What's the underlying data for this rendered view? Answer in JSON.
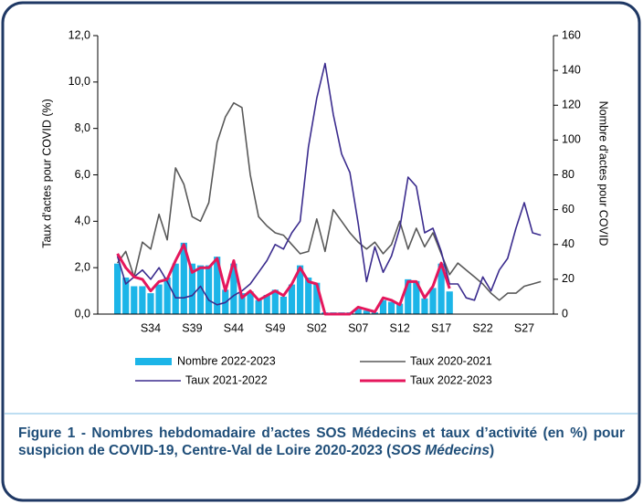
{
  "chart_data": {
    "type": "bar_line",
    "y_axis_label": "Taux d'actes pour COVID (%)",
    "y2_axis_label": "Nombre d'actes pour COVID",
    "categories": [
      null,
      null,
      null,
      null,
      "S34",
      null,
      null,
      null,
      null,
      "S39",
      null,
      null,
      null,
      null,
      "S44",
      null,
      null,
      null,
      null,
      "S49",
      null,
      null,
      null,
      null,
      "S02",
      null,
      null,
      null,
      null,
      "S07",
      null,
      null,
      null,
      null,
      "S12",
      null,
      null,
      null,
      null,
      "S17",
      null,
      null,
      null,
      null,
      "S22",
      null,
      null,
      null,
      null,
      "S27",
      null,
      null
    ],
    "ylim": [
      0,
      12
    ],
    "yticks": [
      {
        "value": 0,
        "label": "0,0"
      },
      {
        "value": 2,
        "label": "2,0"
      },
      {
        "value": 4,
        "label": "4,0"
      },
      {
        "value": 6,
        "label": "6,0"
      },
      {
        "value": 8,
        "label": "8,0"
      },
      {
        "value": 10,
        "label": "10,0"
      },
      {
        "value": 12,
        "label": "12,0"
      }
    ],
    "y2lim": [
      0,
      160
    ],
    "y2ticks": [
      0,
      20,
      40,
      60,
      80,
      100,
      120,
      140,
      160
    ],
    "series": [
      {
        "name": "Nombre 2022-2023",
        "kind": "bar",
        "axis": "y2",
        "color": "#1cb5e8",
        "values": [
          29,
          21,
          16,
          16,
          12,
          17,
          21,
          29,
          41,
          29,
          28,
          28,
          33,
          14,
          29,
          12,
          13,
          8,
          11,
          14,
          10,
          17,
          28,
          21,
          18,
          1,
          1,
          1,
          1,
          3,
          2,
          1,
          8,
          7,
          6,
          20,
          19,
          9,
          15,
          29,
          13,
          null,
          null,
          null,
          null,
          null,
          null,
          null,
          null,
          null,
          null,
          null
        ]
      },
      {
        "name": "Taux 2020-2021",
        "kind": "line",
        "color": "#595959",
        "values": [
          2.2,
          2.7,
          1.6,
          3.1,
          2.8,
          4.3,
          3.2,
          6.3,
          5.6,
          4.2,
          4.0,
          4.8,
          7.4,
          8.5,
          9.1,
          8.9,
          6.0,
          4.2,
          3.8,
          3.5,
          3.4,
          3.0,
          2.6,
          2.7,
          4.1,
          2.7,
          4.5,
          4.0,
          3.5,
          3.1,
          2.8,
          3.1,
          2.6,
          3.0,
          4.0,
          2.8,
          3.7,
          2.9,
          3.5,
          2.6,
          1.7,
          2.2,
          1.9,
          1.6,
          1.3,
          0.9,
          0.6,
          0.9,
          0.9,
          1.2,
          1.3,
          1.4
        ]
      },
      {
        "name": "Taux 2021-2022",
        "kind": "line",
        "color": "#3b2c8e",
        "values": [
          2.5,
          1.3,
          1.6,
          1.9,
          1.5,
          2.0,
          1.4,
          0.7,
          0.7,
          0.8,
          1.2,
          0.6,
          0.4,
          0.5,
          0.8,
          1.0,
          1.3,
          1.8,
          2.3,
          3.0,
          2.8,
          3.5,
          4.0,
          7.2,
          9.3,
          10.8,
          8.6,
          6.9,
          6.1,
          3.9,
          1.4,
          2.9,
          1.8,
          2.5,
          3.7,
          5.9,
          5.5,
          3.5,
          3.7,
          2.7,
          1.3,
          1.3,
          0.7,
          0.6,
          1.6,
          1.0,
          1.9,
          2.4,
          3.7,
          4.8,
          3.5,
          3.4
        ]
      },
      {
        "name": "Taux 2022-2023",
        "kind": "line",
        "color": "#e5175c",
        "width": 3,
        "values": [
          2.6,
          2.0,
          1.6,
          1.5,
          1.0,
          1.4,
          1.5,
          2.3,
          3.0,
          1.8,
          2.0,
          2.0,
          2.4,
          1.0,
          2.3,
          0.7,
          1.0,
          0.6,
          0.8,
          1.0,
          0.8,
          1.3,
          2.0,
          1.4,
          1.3,
          0.0,
          0.0,
          0.0,
          0.0,
          0.3,
          0.2,
          0.1,
          0.7,
          0.6,
          0.4,
          1.4,
          1.4,
          0.7,
          1.2,
          2.2,
          1.1,
          null,
          null,
          null,
          null,
          null,
          null,
          null,
          null,
          null,
          null,
          null
        ]
      }
    ]
  },
  "caption": {
    "text": "Figure 1 - Nombres hebdomadaire d’actes SOS Médecins et taux d’activité (en %) pour suspicion de COVID-19, Centre-Val de Loire 2020-2023 (",
    "source": "SOS Médecins",
    "close": ")"
  }
}
